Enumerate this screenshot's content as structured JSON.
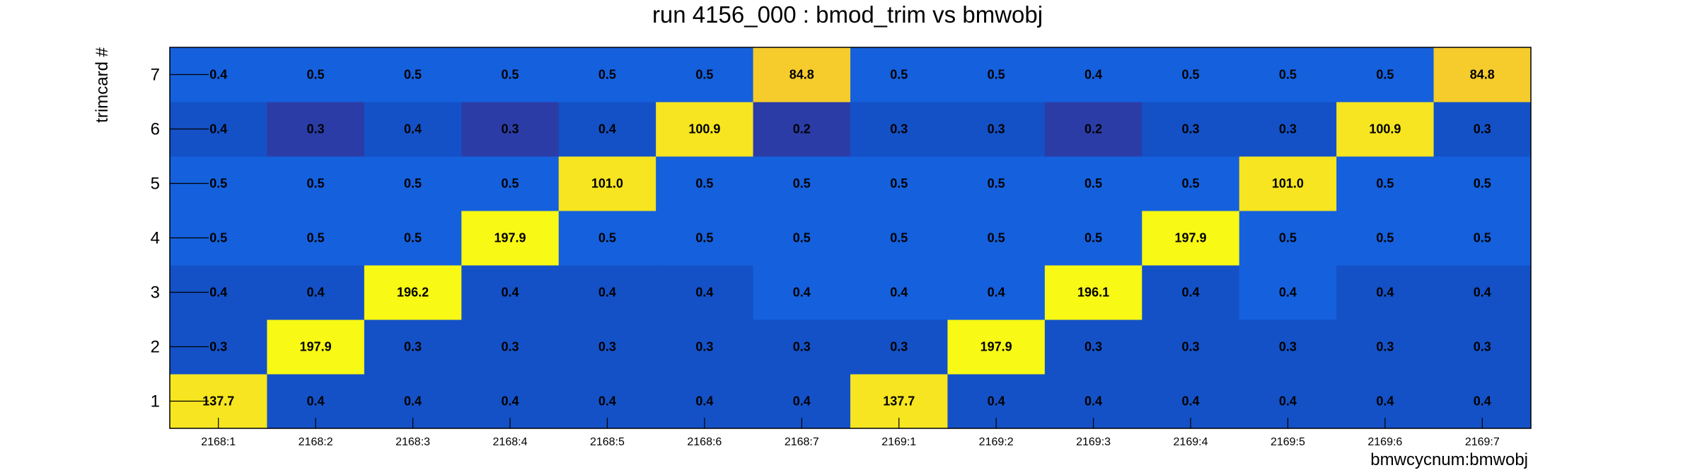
{
  "chart_data": {
    "type": "heatmap",
    "title": "run 4156_000 : bmod_trim vs bmwobj",
    "xlabel": "bmwcycnum:bmwobj",
    "ylabel": "trimcard #",
    "x_categories": [
      "2168:1",
      "2168:2",
      "2168:3",
      "2168:4",
      "2168:5",
      "2168:6",
      "2168:7",
      "2169:1",
      "2169:2",
      "2169:3",
      "2169:4",
      "2169:5",
      "2169:6",
      "2169:7"
    ],
    "y_categories": [
      "1",
      "2",
      "3",
      "4",
      "5",
      "6",
      "7"
    ],
    "values": [
      [
        "137.7",
        "0.4",
        "0.4",
        "0.4",
        "0.4",
        "0.4",
        "0.4",
        "137.7",
        "0.4",
        "0.4",
        "0.4",
        "0.4",
        "0.4",
        "0.4"
      ],
      [
        "0.3",
        "197.9",
        "0.3",
        "0.3",
        "0.3",
        "0.3",
        "0.3",
        "0.3",
        "197.9",
        "0.3",
        "0.3",
        "0.3",
        "0.3",
        "0.3"
      ],
      [
        "0.4",
        "0.4",
        "196.2",
        "0.4",
        "0.4",
        "0.4",
        "0.4",
        "0.4",
        "0.4",
        "196.1",
        "0.4",
        "0.4",
        "0.4",
        "0.4"
      ],
      [
        "0.5",
        "0.5",
        "0.5",
        "197.9",
        "0.5",
        "0.5",
        "0.5",
        "0.5",
        "0.5",
        "0.5",
        "197.9",
        "0.5",
        "0.5",
        "0.5"
      ],
      [
        "0.5",
        "0.5",
        "0.5",
        "0.5",
        "101.0",
        "0.5",
        "0.5",
        "0.5",
        "0.5",
        "0.5",
        "0.5",
        "101.0",
        "0.5",
        "0.5"
      ],
      [
        "0.4",
        "0.3",
        "0.4",
        "0.3",
        "0.4",
        "100.9",
        "0.2",
        "0.3",
        "0.3",
        "0.2",
        "0.3",
        "0.3",
        "100.9",
        "0.3"
      ],
      [
        "0.4",
        "0.5",
        "0.5",
        "0.5",
        "0.5",
        "0.5",
        "84.8",
        "0.5",
        "0.5",
        "0.4",
        "0.5",
        "0.5",
        "0.5",
        "84.8"
      ]
    ],
    "colorscale": {
      "low_deep": "#2b3ca6",
      "low": "#1451c7",
      "mid_low": "#1560dc",
      "high_mid": "#f6cc2c",
      "high": "#f8f914"
    },
    "grid": false
  }
}
